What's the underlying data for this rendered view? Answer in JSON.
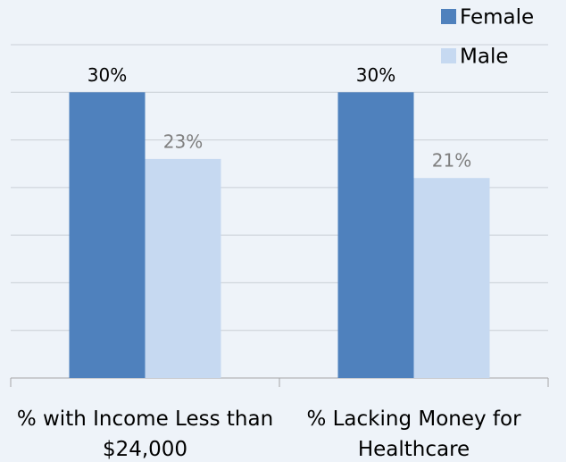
{
  "chart_data": {
    "type": "bar",
    "categories": [
      "% with Income Less than $24,000",
      "% Lacking Money for Healthcare"
    ],
    "series": [
      {
        "name": "Female",
        "color": "#4f81bd",
        "values": [
          30,
          30
        ],
        "value_labels": [
          "30%",
          "30%"
        ]
      },
      {
        "name": "Male",
        "color": "#c6d9f1",
        "values": [
          23,
          21
        ],
        "value_labels": [
          "23%",
          "21%"
        ]
      }
    ],
    "ylim": [
      0,
      35
    ],
    "yticks": [
      0,
      5,
      10,
      15,
      20,
      25,
      30,
      35
    ],
    "grid": true,
    "legend": "top-right"
  }
}
